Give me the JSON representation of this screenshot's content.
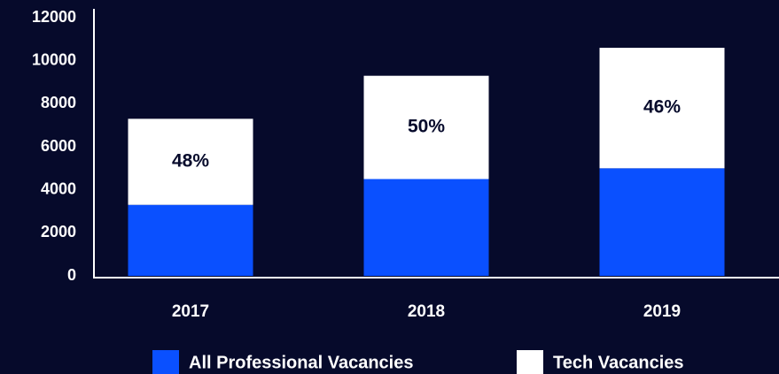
{
  "chart_data": {
    "type": "stacked_bar",
    "categories": [
      "2017",
      "2018",
      "2019"
    ],
    "series": [
      {
        "name": "All Professional Vacancies",
        "color": "#0a50ff",
        "values": [
          3300,
          4500,
          5000
        ]
      },
      {
        "name": "Tech Vacancies",
        "color": "#ffffff",
        "values": [
          4000,
          4800,
          5600
        ]
      }
    ],
    "annotations": [
      "48%",
      "50%",
      "46%"
    ],
    "ylim": [
      0,
      12000
    ],
    "yticks": [
      0,
      2000,
      4000,
      6000,
      8000,
      10000,
      12000
    ],
    "grid": false,
    "legend": "bottom"
  }
}
